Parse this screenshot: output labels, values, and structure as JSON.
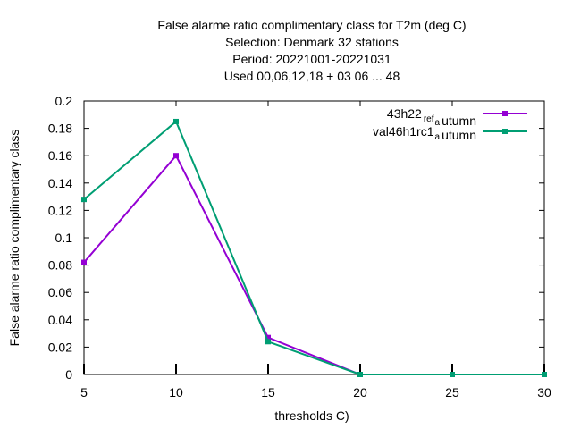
{
  "chart_data": {
    "type": "line",
    "title_lines": [
      "False alarme ratio complimentary class  for T2m (deg C)",
      "Selection: Denmark     32 stations",
      "Period: 20221001-20221031",
      "Used  00,06,12,18  + 03 06 ... 48"
    ],
    "xlabel": "thresholds C)",
    "ylabel": "False alarme ratio complimentary class",
    "xlim": [
      5,
      30
    ],
    "ylim": [
      0,
      0.2
    ],
    "x_ticks": [
      "5",
      "10",
      "15",
      "20",
      "25",
      "30"
    ],
    "y_ticks": [
      "0",
      "0.02",
      "0.04",
      "0.06",
      "0.08",
      "0.1",
      "0.12",
      "0.14",
      "0.16",
      "0.18",
      "0.2"
    ],
    "x": [
      5,
      10,
      15,
      20,
      25,
      30
    ],
    "series": [
      {
        "name": "43h22_ref_autumn",
        "legend_main": "43h22",
        "legend_parts": [
          [
            "ref",
            "a"
          ],
          [
            "utumn",
            ""
          ]
        ],
        "color": "#9400d3",
        "values": [
          0.082,
          0.16,
          0.027,
          0.0,
          0.0,
          0.0
        ]
      },
      {
        "name": "val46h1rc1_autumn",
        "legend_main": "val46h1rc1",
        "legend_parts": [
          [
            "",
            "a"
          ],
          [
            "utumn",
            ""
          ]
        ],
        "color": "#009e73",
        "values": [
          0.128,
          0.185,
          0.024,
          0.0,
          0.0,
          0.0
        ]
      }
    ],
    "grid": false,
    "legend_position": "top-right"
  }
}
